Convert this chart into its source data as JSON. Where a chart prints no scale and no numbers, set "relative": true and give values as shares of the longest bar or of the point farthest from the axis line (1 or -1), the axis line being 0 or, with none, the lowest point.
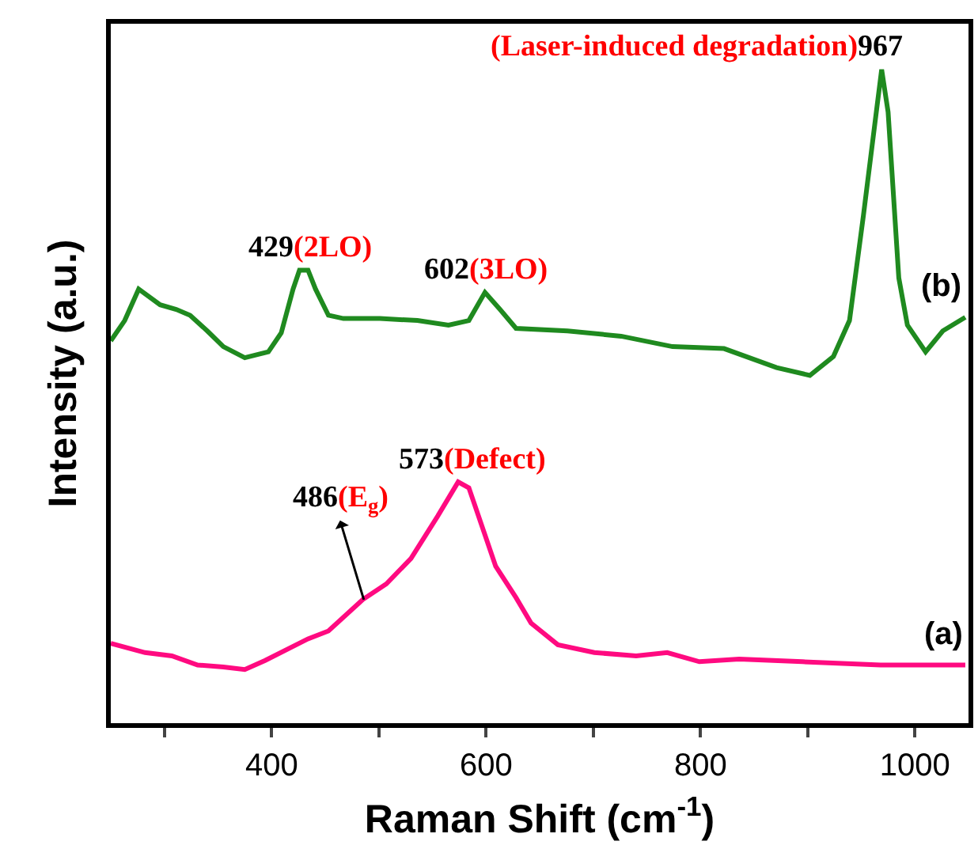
{
  "chart_data": {
    "type": "line",
    "relative": true,
    "xlabel": "Raman Shift (cm$^{-1}$)",
    "ylabel": "Intensity (a.u.)",
    "xlim": [
      250,
      1050
    ],
    "xticks": [
      {
        "value": 300,
        "label": null
      },
      400,
      {
        "value": 500,
        "label": null
      },
      600,
      {
        "value": 700,
        "label": null
      },
      800,
      {
        "value": 900,
        "label": null
      },
      1000
    ],
    "marker": "none",
    "line_style": "solid",
    "series": [
      {
        "color": "#ff0a80",
        "x": [
          250,
          282,
          307,
          331,
          355,
          375,
          394,
          434,
          453,
          485,
          507,
          530,
          555,
          574,
          584,
          609,
          628,
          642,
          667,
          701,
          740,
          769,
          799,
          836,
          895,
          968,
          1047
        ],
        "values": [
          0.122,
          0.108,
          0.103,
          0.089,
          0.086,
          0.082,
          0.096,
          0.129,
          0.141,
          0.189,
          0.213,
          0.252,
          0.317,
          0.369,
          0.36,
          0.24,
          0.192,
          0.153,
          0.12,
          0.108,
          0.103,
          0.108,
          0.094,
          0.098,
          0.094,
          0.089,
          0.089
        ]
      },
      {
        "color": "#1f8a1f",
        "x": [
          250,
          263,
          276,
          296,
          311,
          324,
          340,
          355,
          375,
          397,
          409,
          420,
          426,
          434,
          441,
          453,
          467,
          501,
          536,
          565,
          584,
          599,
          613,
          628,
          676,
          726,
          774,
          822,
          871,
          902,
          924,
          939,
          952,
          964,
          969,
          975,
          985,
          993,
          1010,
          1026,
          1047
        ],
        "values": [
          0.585,
          0.616,
          0.664,
          0.64,
          0.633,
          0.624,
          0.6,
          0.576,
          0.559,
          0.568,
          0.597,
          0.664,
          0.693,
          0.693,
          0.664,
          0.624,
          0.619,
          0.619,
          0.616,
          0.609,
          0.616,
          0.659,
          0.633,
          0.604,
          0.6,
          0.592,
          0.576,
          0.573,
          0.544,
          0.532,
          0.561,
          0.616,
          0.777,
          0.935,
          1.0,
          0.935,
          0.681,
          0.609,
          0.568,
          0.6,
          0.621
        ]
      }
    ],
    "annotations": [
      {
        "text": "(a)",
        "x": 1047,
        "y": 0.089
      },
      {
        "text": "(b)",
        "x": 1047,
        "y": 0.621
      },
      {
        "text": "486(E$_{g}$)",
        "x": 486,
        "y": 0.189
      },
      {
        "text": "573(Defect)",
        "x": 574,
        "y": 0.369
      },
      {
        "text": "429(2LO)",
        "x": 434,
        "y": 0.693
      },
      {
        "text": "602(3LO)",
        "x": 599,
        "y": 0.659
      },
      {
        "text": "(Laser-induced degradation)967",
        "x": 969,
        "y": 1.0
      }
    ]
  }
}
